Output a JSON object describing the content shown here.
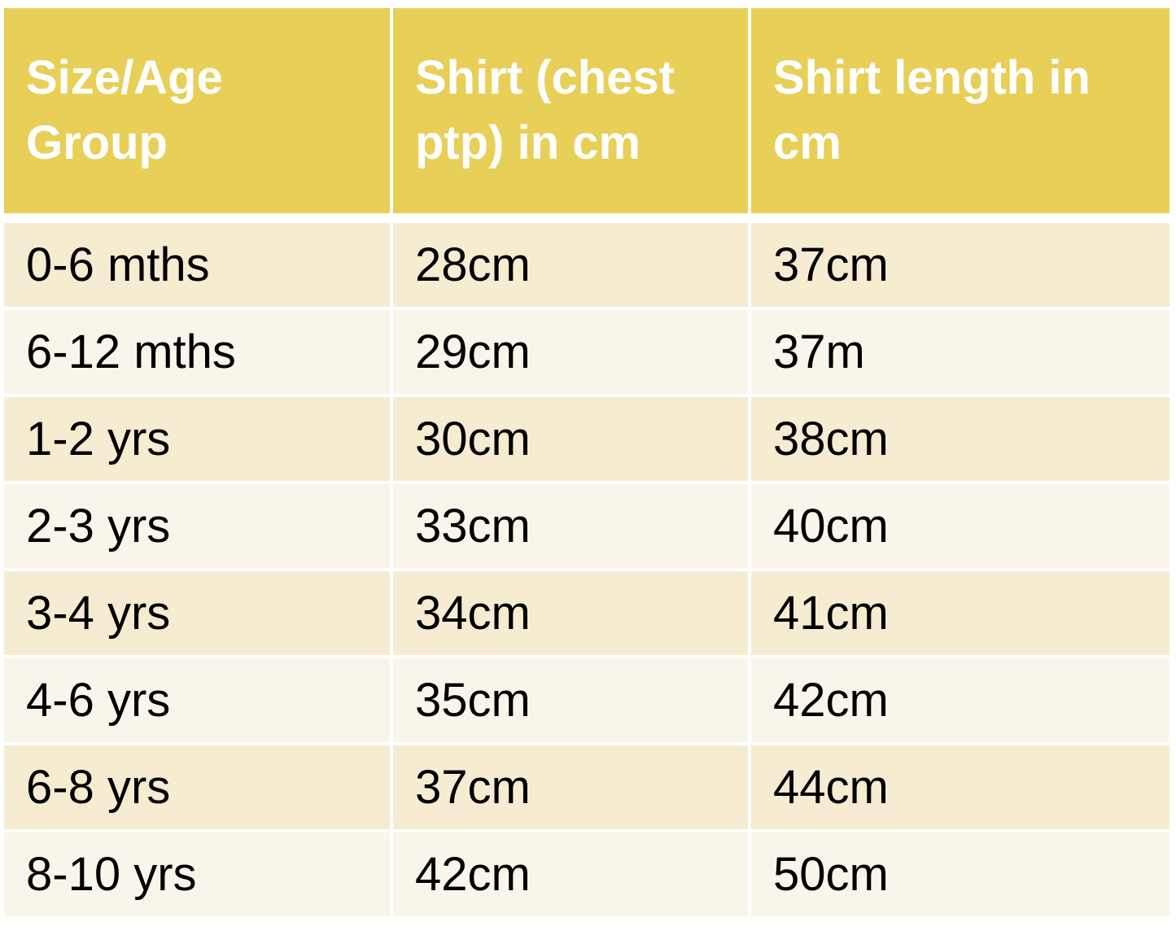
{
  "table": {
    "header": [
      "Size/Age Group",
      "Shirt (chest ptp) in cm",
      "Shirt length in cm"
    ],
    "rows": [
      [
        "0-6 mths",
        "28cm",
        "37cm"
      ],
      [
        "6-12 mths",
        "29cm",
        "37m"
      ],
      [
        "1-2 yrs",
        "30cm",
        "38cm"
      ],
      [
        "2-3 yrs",
        "33cm",
        "40cm"
      ],
      [
        "3-4 yrs",
        "34cm",
        "41cm"
      ],
      [
        "4-6 yrs",
        "35cm",
        "42cm"
      ],
      [
        "6-8 yrs",
        "37cm",
        "44cm"
      ],
      [
        "8-10 yrs",
        "42cm",
        "50cm"
      ]
    ]
  }
}
